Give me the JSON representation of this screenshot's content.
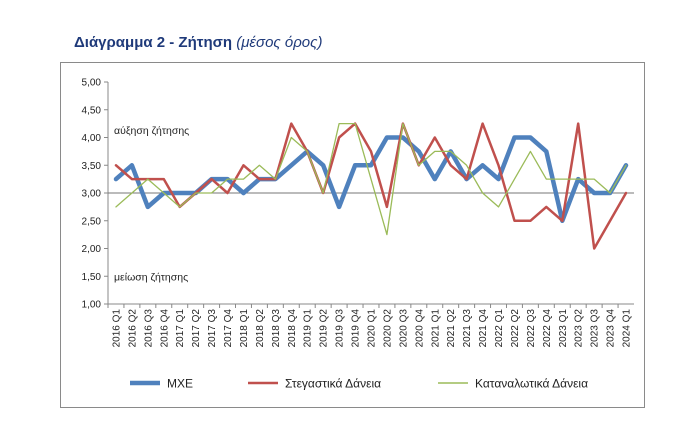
{
  "title": {
    "main": "Διάγραμμα 2 - Ζήτηση",
    "sub": "(μέσος όρος)"
  },
  "chart_data": {
    "type": "line",
    "categories": [
      "2016 Q1",
      "2016 Q2",
      "2016 Q3",
      "2016 Q4",
      "2017 Q1",
      "2017 Q2",
      "2017 Q3",
      "2017 Q4",
      "2018 Q1",
      "2018 Q2",
      "2018 Q3",
      "2018 Q4",
      "2019 Q1",
      "2019 Q2",
      "2019 Q3",
      "2019 Q4",
      "2020 Q1",
      "2020 Q2",
      "2020 Q3",
      "2020 Q4",
      "2021 Q1",
      "2021 Q2",
      "2021 Q3",
      "2021 Q4",
      "2022 Q1",
      "2022 Q2",
      "2022 Q3",
      "2022 Q4",
      "2023 Q1",
      "2023 Q2",
      "2023 Q3",
      "2023 Q4",
      "2024 Q1"
    ],
    "ylim": [
      1.0,
      5.0
    ],
    "yticks": [
      "1,00",
      "1,50",
      "2,00",
      "2,50",
      "3,00",
      "3,50",
      "4,00",
      "4,50",
      "5,00"
    ],
    "grid": false,
    "reference_line": 3.0,
    "legend_position": "bottom",
    "annotations": {
      "top": "αύξηση ζήτησης",
      "bottom": "μείωση ζήτησης"
    },
    "series": [
      {
        "name": "ΜΧΕ",
        "color": "#4f81bd",
        "values": [
          3.25,
          3.5,
          2.75,
          3.0,
          3.0,
          3.0,
          3.25,
          3.25,
          3.0,
          3.25,
          3.25,
          3.5,
          3.75,
          3.5,
          2.75,
          3.5,
          3.5,
          4.0,
          4.0,
          3.75,
          3.25,
          3.75,
          3.25,
          3.5,
          3.25,
          4.0,
          4.0,
          3.75,
          2.5,
          3.25,
          3.0,
          3.0,
          3.5
        ]
      },
      {
        "name": "Στεγαστικά Δάνεια",
        "color": "#c0504d",
        "values": [
          3.5,
          3.25,
          3.25,
          3.25,
          2.75,
          3.0,
          3.25,
          3.0,
          3.5,
          3.25,
          3.25,
          4.25,
          3.75,
          3.0,
          4.0,
          4.25,
          3.75,
          2.75,
          4.25,
          3.5,
          4.0,
          3.5,
          3.25,
          4.25,
          3.5,
          2.5,
          2.5,
          2.75,
          2.5,
          4.25,
          2.0,
          2.5,
          3.0
        ]
      },
      {
        "name": "Καταναλωτικά Δάνεια",
        "color": "#9bbb59",
        "values": [
          2.75,
          3.0,
          3.25,
          3.0,
          2.75,
          3.0,
          3.0,
          3.25,
          3.25,
          3.5,
          3.25,
          4.0,
          3.75,
          3.0,
          4.25,
          4.25,
          3.25,
          2.25,
          4.25,
          3.5,
          3.75,
          3.75,
          3.5,
          3.0,
          2.75,
          3.25,
          3.75,
          3.25,
          3.25,
          3.25,
          3.25,
          3.0,
          3.5
        ]
      }
    ]
  }
}
